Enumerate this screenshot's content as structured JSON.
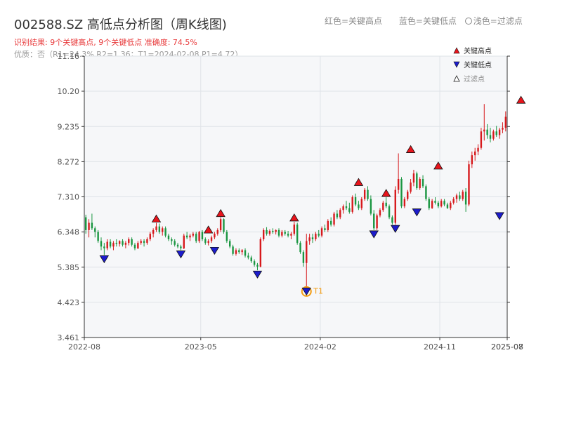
{
  "header": {
    "title": "002588.SZ 高低点分析图（周K线图)",
    "result_line": "识别结果: 9个关键高点, 9个关键低点  准确度: 74.5%",
    "quality_line": "优质：否（R1=24.3%  R2=1.36；T1=2024-02-08 P1=4.72）"
  },
  "top_legend": {
    "red": "红色=关键高点",
    "blue": "蓝色=关键低点",
    "hollow": "浅色=过滤点"
  },
  "colors": {
    "up": "#d7191c",
    "down": "#1a9641",
    "high_marker": "#e8141c",
    "low_marker": "#1c1ccc",
    "t1": "#f39c12",
    "plot_bg": "#f6f7f9",
    "grid": "#dfe3e8"
  },
  "chart_data": {
    "type": "candlestick",
    "xlabel": "",
    "ylabel": "",
    "ylim": [
      3.461,
      11.16
    ],
    "yticks": [
      "3.461",
      "4.423",
      "5.385",
      "6.348",
      "7.310",
      "8.272",
      "9.235",
      "10.20",
      "11.16"
    ],
    "xticks": [
      "2022-08",
      "2023-05",
      "2024-02",
      "2024-11",
      "2025-07",
      "2025-08"
    ],
    "grid": true,
    "legend": {
      "placement": "top-right",
      "entries": [
        {
          "label": "关键高点",
          "marker": "triangle-up",
          "color": "#e8141c"
        },
        {
          "label": "关键低点",
          "marker": "triangle-down",
          "color": "#1c1ccc"
        },
        {
          "label": "过滤点",
          "marker": "triangle-up-hollow",
          "color": "#ffffff"
        }
      ]
    },
    "ohlc": [
      [
        6.75,
        6.82,
        6.3,
        6.4
      ],
      [
        6.4,
        6.7,
        6.2,
        6.6
      ],
      [
        6.6,
        6.85,
        6.4,
        6.45
      ],
      [
        6.45,
        6.5,
        6.2,
        6.35
      ],
      [
        6.35,
        6.4,
        6.05,
        6.1
      ],
      [
        6.1,
        6.2,
        5.85,
        5.95
      ],
      [
        5.95,
        6.05,
        5.72,
        5.9
      ],
      [
        5.9,
        6.15,
        5.85,
        6.08
      ],
      [
        6.08,
        6.15,
        5.9,
        5.95
      ],
      [
        5.95,
        6.1,
        5.85,
        6.05
      ],
      [
        6.05,
        6.15,
        5.95,
        6.02
      ],
      [
        6.02,
        6.12,
        5.95,
        6.1
      ],
      [
        6.1,
        6.15,
        5.95,
        6.0
      ],
      [
        6.0,
        6.1,
        5.9,
        6.05
      ],
      [
        6.05,
        6.2,
        5.98,
        6.15
      ],
      [
        6.15,
        6.2,
        5.95,
        6.0
      ],
      [
        6.0,
        6.05,
        5.85,
        5.9
      ],
      [
        5.9,
        6.1,
        5.88,
        6.05
      ],
      [
        6.05,
        6.15,
        6.0,
        6.1
      ],
      [
        6.1,
        6.15,
        5.95,
        6.05
      ],
      [
        6.05,
        6.2,
        6.0,
        6.15
      ],
      [
        6.15,
        6.35,
        6.1,
        6.3
      ],
      [
        6.3,
        6.45,
        6.2,
        6.4
      ],
      [
        6.4,
        6.6,
        6.35,
        6.5
      ],
      [
        6.5,
        6.58,
        6.3,
        6.35
      ],
      [
        6.35,
        6.5,
        6.25,
        6.45
      ],
      [
        6.45,
        6.5,
        6.2,
        6.25
      ],
      [
        6.25,
        6.3,
        6.1,
        6.15
      ],
      [
        6.15,
        6.2,
        6.0,
        6.1
      ],
      [
        6.1,
        6.15,
        5.95,
        6.0
      ],
      [
        6.0,
        6.05,
        5.9,
        5.95
      ],
      [
        5.95,
        6.0,
        5.85,
        5.9
      ],
      [
        5.9,
        6.3,
        5.88,
        6.25
      ],
      [
        6.25,
        6.35,
        6.15,
        6.2
      ],
      [
        6.2,
        6.3,
        6.1,
        6.25
      ],
      [
        6.25,
        6.35,
        6.2,
        6.3
      ],
      [
        6.3,
        6.35,
        6.05,
        6.1
      ],
      [
        6.1,
        6.38,
        6.05,
        6.35
      ],
      [
        6.35,
        6.4,
        6.1,
        6.15
      ],
      [
        6.15,
        6.2,
        6.0,
        6.05
      ],
      [
        6.05,
        6.15,
        5.98,
        6.1
      ],
      [
        6.1,
        6.25,
        6.05,
        6.2
      ],
      [
        6.2,
        6.35,
        6.15,
        6.3
      ],
      [
        6.3,
        6.45,
        6.25,
        6.4
      ],
      [
        6.4,
        6.75,
        6.35,
        6.7
      ],
      [
        6.7,
        6.72,
        6.3,
        6.35
      ],
      [
        6.35,
        6.4,
        6.05,
        6.1
      ],
      [
        6.1,
        6.15,
        5.9,
        5.95
      ],
      [
        5.95,
        6.0,
        5.7,
        5.75
      ],
      [
        5.75,
        5.9,
        5.7,
        5.85
      ],
      [
        5.85,
        5.9,
        5.75,
        5.8
      ],
      [
        5.8,
        5.88,
        5.72,
        5.85
      ],
      [
        5.85,
        5.9,
        5.65,
        5.7
      ],
      [
        5.7,
        5.78,
        5.6,
        5.65
      ],
      [
        5.65,
        5.7,
        5.5,
        5.55
      ],
      [
        5.55,
        5.6,
        5.4,
        5.45
      ],
      [
        5.45,
        5.5,
        5.3,
        5.4
      ],
      [
        5.4,
        6.2,
        5.38,
        6.15
      ],
      [
        6.15,
        6.45,
        6.1,
        6.4
      ],
      [
        6.4,
        6.48,
        6.25,
        6.3
      ],
      [
        6.3,
        6.42,
        6.25,
        6.38
      ],
      [
        6.38,
        6.45,
        6.3,
        6.35
      ],
      [
        6.35,
        6.42,
        6.28,
        6.4
      ],
      [
        6.4,
        6.45,
        6.2,
        6.25
      ],
      [
        6.25,
        6.4,
        6.2,
        6.35
      ],
      [
        6.35,
        6.4,
        6.25,
        6.3
      ],
      [
        6.3,
        6.38,
        6.2,
        6.25
      ],
      [
        6.25,
        6.35,
        6.15,
        6.3
      ],
      [
        6.3,
        6.63,
        6.25,
        6.55
      ],
      [
        6.55,
        6.6,
        6.0,
        6.05
      ],
      [
        6.05,
        6.1,
        5.75,
        5.8
      ],
      [
        5.8,
        5.85,
        5.4,
        5.5
      ],
      [
        5.5,
        6.3,
        4.72,
        6.1
      ],
      [
        6.1,
        6.3,
        6.0,
        6.2
      ],
      [
        6.2,
        6.3,
        6.05,
        6.15
      ],
      [
        6.15,
        6.35,
        6.1,
        6.3
      ],
      [
        6.3,
        6.4,
        6.2,
        6.25
      ],
      [
        6.25,
        6.5,
        6.2,
        6.45
      ],
      [
        6.45,
        6.55,
        6.35,
        6.4
      ],
      [
        6.4,
        6.7,
        6.35,
        6.65
      ],
      [
        6.65,
        6.75,
        6.5,
        6.55
      ],
      [
        6.55,
        6.9,
        6.5,
        6.85
      ],
      [
        6.85,
        6.95,
        6.7,
        6.75
      ],
      [
        6.75,
        7.0,
        6.7,
        6.95
      ],
      [
        6.95,
        7.1,
        6.85,
        7.05
      ],
      [
        7.05,
        7.2,
        6.95,
        7.0
      ],
      [
        7.0,
        7.15,
        6.85,
        6.9
      ],
      [
        6.9,
        7.35,
        6.85,
        7.3
      ],
      [
        7.3,
        7.4,
        7.05,
        7.1
      ],
      [
        7.1,
        7.2,
        6.95,
        7.0
      ],
      [
        7.0,
        7.3,
        6.95,
        7.25
      ],
      [
        7.25,
        7.55,
        7.2,
        7.5
      ],
      [
        7.5,
        7.6,
        7.2,
        7.25
      ],
      [
        7.25,
        7.35,
        6.8,
        6.85
      ],
      [
        6.85,
        6.95,
        6.4,
        6.45
      ],
      [
        6.45,
        6.85,
        6.4,
        6.8
      ],
      [
        6.8,
        7.0,
        6.75,
        6.95
      ],
      [
        6.95,
        7.2,
        6.9,
        7.15
      ],
      [
        7.15,
        7.3,
        7.0,
        7.05
      ],
      [
        7.05,
        7.1,
        6.7,
        6.75
      ],
      [
        6.75,
        6.8,
        6.55,
        6.6
      ],
      [
        6.6,
        7.6,
        6.55,
        7.5
      ],
      [
        7.5,
        8.5,
        7.4,
        7.8
      ],
      [
        7.8,
        7.85,
        7.0,
        7.05
      ],
      [
        7.05,
        7.3,
        7.0,
        7.25
      ],
      [
        7.25,
        7.5,
        7.2,
        7.45
      ],
      [
        7.45,
        7.8,
        7.4,
        7.7
      ],
      [
        7.7,
        8.05,
        7.6,
        7.95
      ],
      [
        7.95,
        8.0,
        7.5,
        7.55
      ],
      [
        7.55,
        7.85,
        7.5,
        7.8
      ],
      [
        7.8,
        7.9,
        7.55,
        7.6
      ],
      [
        7.6,
        7.65,
        7.2,
        7.25
      ],
      [
        7.25,
        7.3,
        6.95,
        7.0
      ],
      [
        7.0,
        7.25,
        6.98,
        7.2
      ],
      [
        7.2,
        7.3,
        7.1,
        7.15
      ],
      [
        7.15,
        7.2,
        7.0,
        7.05
      ],
      [
        7.05,
        7.25,
        7.02,
        7.2
      ],
      [
        7.2,
        7.25,
        7.05,
        7.1
      ],
      [
        7.1,
        7.15,
        6.98,
        7.0
      ],
      [
        7.0,
        7.2,
        6.95,
        7.15
      ],
      [
        7.15,
        7.3,
        7.1,
        7.25
      ],
      [
        7.25,
        7.4,
        7.15,
        7.35
      ],
      [
        7.35,
        7.45,
        7.2,
        7.25
      ],
      [
        7.25,
        7.5,
        7.2,
        7.45
      ],
      [
        7.45,
        7.55,
        6.9,
        7.1
      ],
      [
        7.1,
        8.3,
        7.05,
        8.2
      ],
      [
        8.2,
        8.55,
        8.1,
        8.45
      ],
      [
        8.45,
        8.65,
        8.3,
        8.55
      ],
      [
        8.55,
        8.75,
        8.45,
        8.65
      ],
      [
        8.65,
        9.2,
        8.6,
        9.1
      ],
      [
        9.1,
        9.85,
        8.85,
        9.15
      ],
      [
        9.15,
        9.3,
        8.9,
        9.0
      ],
      [
        9.0,
        9.2,
        8.8,
        8.9
      ],
      [
        8.9,
        9.15,
        8.85,
        9.1
      ],
      [
        9.1,
        9.25,
        8.95,
        9.0
      ],
      [
        9.0,
        9.2,
        8.9,
        9.15
      ],
      [
        9.15,
        9.35,
        9.05,
        9.2
      ],
      [
        9.2,
        9.65,
        9.1,
        9.5
      ]
    ],
    "key_highs": [
      {
        "index": 23,
        "price": 6.6
      },
      {
        "index": 40,
        "price": 6.3
      },
      {
        "index": 44,
        "price": 6.75
      },
      {
        "index": 68,
        "price": 6.63
      },
      {
        "index": 89,
        "price": 7.6
      },
      {
        "index": 98,
        "price": 7.3
      },
      {
        "index": 106,
        "price": 8.5
      },
      {
        "index": 115,
        "price": 8.05
      },
      {
        "index": 142,
        "price": 9.85
      }
    ],
    "key_lows": [
      {
        "index": 6,
        "price": 5.72
      },
      {
        "index": 31,
        "price": 5.85
      },
      {
        "index": 42,
        "price": 5.95
      },
      {
        "index": 56,
        "price": 5.3
      },
      {
        "index": 72,
        "price": 4.72
      },
      {
        "index": 94,
        "price": 6.4
      },
      {
        "index": 101,
        "price": 6.55
      },
      {
        "index": 108,
        "price": 7.0
      },
      {
        "index": 135,
        "price": 6.9
      }
    ],
    "t1_label": "T1",
    "t1_index": 72
  }
}
